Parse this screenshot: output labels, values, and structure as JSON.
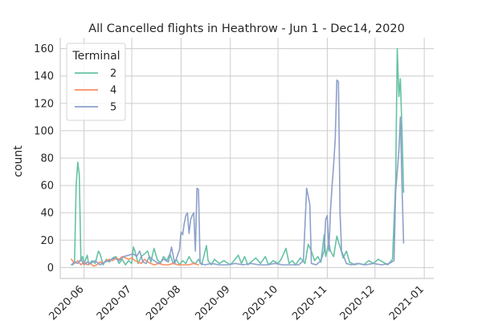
{
  "chart_data": {
    "type": "line",
    "title": "All Cancelled flights in Heathrow - Jun 1 - Dec14, 2020",
    "xlabel": "",
    "ylabel": "count",
    "xlim": [
      "2020-05-17",
      "2021-01-07"
    ],
    "ylim": [
      -8,
      168
    ],
    "x_ticks": [
      "2020-06",
      "2020-07",
      "2020-08",
      "2020-09",
      "2020-10",
      "2020-11",
      "2020-12",
      "2021-01"
    ],
    "y_ticks": [
      0,
      20,
      40,
      60,
      80,
      100,
      120,
      140,
      160
    ],
    "grid": true,
    "legend": {
      "title": "Terminal",
      "position": "top-left"
    },
    "series": [
      {
        "name": "2",
        "color": "#66c2a5",
        "points": [
          [
            "2020-05-25",
            2
          ],
          [
            "2020-05-26",
            4
          ],
          [
            "2020-05-27",
            60
          ],
          [
            "2020-05-28",
            77
          ],
          [
            "2020-05-29",
            68
          ],
          [
            "2020-05-30",
            5
          ],
          [
            "2020-05-31",
            8
          ],
          [
            "2020-06-01",
            3
          ],
          [
            "2020-06-03",
            9
          ],
          [
            "2020-06-04",
            2
          ],
          [
            "2020-06-06",
            5
          ],
          [
            "2020-06-08",
            3
          ],
          [
            "2020-06-10",
            12
          ],
          [
            "2020-06-11",
            10
          ],
          [
            "2020-06-13",
            2
          ],
          [
            "2020-06-15",
            6
          ],
          [
            "2020-06-17",
            4
          ],
          [
            "2020-06-19",
            7
          ],
          [
            "2020-06-21",
            8
          ],
          [
            "2020-06-23",
            3
          ],
          [
            "2020-06-25",
            6
          ],
          [
            "2020-06-27",
            2
          ],
          [
            "2020-06-29",
            5
          ],
          [
            "2020-07-01",
            3
          ],
          [
            "2020-07-02",
            15
          ],
          [
            "2020-07-03",
            12
          ],
          [
            "2020-07-05",
            3
          ],
          [
            "2020-07-07",
            8
          ],
          [
            "2020-07-09",
            10
          ],
          [
            "2020-07-11",
            12
          ],
          [
            "2020-07-13",
            4
          ],
          [
            "2020-07-15",
            14
          ],
          [
            "2020-07-17",
            6
          ],
          [
            "2020-07-19",
            3
          ],
          [
            "2020-07-21",
            8
          ],
          [
            "2020-07-23",
            5
          ],
          [
            "2020-07-25",
            10
          ],
          [
            "2020-07-27",
            3
          ],
          [
            "2020-07-29",
            6
          ],
          [
            "2020-07-31",
            2
          ],
          [
            "2020-08-02",
            5
          ],
          [
            "2020-08-04",
            3
          ],
          [
            "2020-08-06",
            8
          ],
          [
            "2020-08-08",
            4
          ],
          [
            "2020-08-10",
            3
          ],
          [
            "2020-08-12",
            6
          ],
          [
            "2020-08-14",
            2
          ],
          [
            "2020-08-17",
            16
          ],
          [
            "2020-08-18",
            5
          ],
          [
            "2020-08-20",
            2
          ],
          [
            "2020-08-22",
            6
          ],
          [
            "2020-08-25",
            3
          ],
          [
            "2020-08-28",
            5
          ],
          [
            "2020-09-01",
            2
          ],
          [
            "2020-09-04",
            6
          ],
          [
            "2020-09-06",
            9
          ],
          [
            "2020-09-08",
            3
          ],
          [
            "2020-09-10",
            8
          ],
          [
            "2020-09-12",
            2
          ],
          [
            "2020-09-15",
            5
          ],
          [
            "2020-09-17",
            7
          ],
          [
            "2020-09-20",
            3
          ],
          [
            "2020-09-23",
            8
          ],
          [
            "2020-09-25",
            2
          ],
          [
            "2020-09-28",
            5
          ],
          [
            "2020-10-01",
            3
          ],
          [
            "2020-10-03",
            6
          ],
          [
            "2020-10-06",
            14
          ],
          [
            "2020-10-08",
            3
          ],
          [
            "2020-10-10",
            5
          ],
          [
            "2020-10-12",
            2
          ],
          [
            "2020-10-15",
            7
          ],
          [
            "2020-10-18",
            3
          ],
          [
            "2020-10-20",
            17
          ],
          [
            "2020-10-22",
            12
          ],
          [
            "2020-10-24",
            5
          ],
          [
            "2020-10-26",
            8
          ],
          [
            "2020-10-28",
            4
          ],
          [
            "2020-10-30",
            24
          ],
          [
            "2020-10-31",
            8
          ],
          [
            "2020-11-02",
            18
          ],
          [
            "2020-11-03",
            12
          ],
          [
            "2020-11-05",
            8
          ],
          [
            "2020-11-07",
            23
          ],
          [
            "2020-11-09",
            15
          ],
          [
            "2020-11-11",
            7
          ],
          [
            "2020-11-13",
            12
          ],
          [
            "2020-11-15",
            4
          ],
          [
            "2020-11-18",
            2
          ],
          [
            "2020-11-21",
            3
          ],
          [
            "2020-11-24",
            2
          ],
          [
            "2020-11-27",
            5
          ],
          [
            "2020-11-30",
            3
          ],
          [
            "2020-12-03",
            6
          ],
          [
            "2020-12-06",
            4
          ],
          [
            "2020-12-09",
            2
          ],
          [
            "2020-12-12",
            6
          ],
          [
            "2020-12-14",
            62
          ],
          [
            "2020-12-15",
            160
          ],
          [
            "2020-12-16",
            125
          ],
          [
            "2020-12-17",
            138
          ],
          [
            "2020-12-18",
            100
          ],
          [
            "2020-12-19",
            55
          ]
        ]
      },
      {
        "name": "4",
        "color": "#fc8d62",
        "points": [
          [
            "2020-05-24",
            6
          ],
          [
            "2020-05-26",
            3
          ],
          [
            "2020-05-28",
            5
          ],
          [
            "2020-05-30",
            2
          ],
          [
            "2020-06-01",
            4
          ],
          [
            "2020-06-03",
            2
          ],
          [
            "2020-06-05",
            3
          ],
          [
            "2020-06-07",
            1
          ],
          [
            "2020-06-09",
            2
          ],
          [
            "2020-06-11",
            4
          ],
          [
            "2020-06-13",
            3
          ],
          [
            "2020-06-15",
            5
          ],
          [
            "2020-06-17",
            6
          ],
          [
            "2020-06-19",
            5
          ],
          [
            "2020-06-21",
            7
          ],
          [
            "2020-06-23",
            6
          ],
          [
            "2020-06-25",
            8
          ],
          [
            "2020-06-27",
            7
          ],
          [
            "2020-06-29",
            6
          ],
          [
            "2020-07-01",
            7
          ],
          [
            "2020-07-03",
            5
          ],
          [
            "2020-07-05",
            4
          ],
          [
            "2020-07-07",
            3
          ],
          [
            "2020-07-09",
            6
          ],
          [
            "2020-07-11",
            4
          ],
          [
            "2020-07-13",
            3
          ],
          [
            "2020-07-15",
            2
          ],
          [
            "2020-07-18",
            3
          ],
          [
            "2020-07-21",
            2
          ],
          [
            "2020-07-24",
            2
          ],
          [
            "2020-07-27",
            3
          ],
          [
            "2020-07-30",
            2
          ],
          [
            "2020-08-03",
            2
          ],
          [
            "2020-08-06",
            2
          ],
          [
            "2020-08-09",
            3
          ],
          [
            "2020-08-12",
            2
          ]
        ]
      },
      {
        "name": "5",
        "color": "#8da0cb",
        "points": [
          [
            "2020-05-24",
            2
          ],
          [
            "2020-05-26",
            4
          ],
          [
            "2020-05-28",
            3
          ],
          [
            "2020-05-30",
            6
          ],
          [
            "2020-06-01",
            2
          ],
          [
            "2020-06-03",
            4
          ],
          [
            "2020-06-05",
            3
          ],
          [
            "2020-06-08",
            5
          ],
          [
            "2020-06-11",
            2
          ],
          [
            "2020-06-14",
            4
          ],
          [
            "2020-06-17",
            5
          ],
          [
            "2020-06-20",
            7
          ],
          [
            "2020-06-23",
            5
          ],
          [
            "2020-06-26",
            8
          ],
          [
            "2020-06-29",
            9
          ],
          [
            "2020-07-02",
            10
          ],
          [
            "2020-07-04",
            8
          ],
          [
            "2020-07-06",
            12
          ],
          [
            "2020-07-08",
            4
          ],
          [
            "2020-07-10",
            3
          ],
          [
            "2020-07-12",
            8
          ],
          [
            "2020-07-15",
            5
          ],
          [
            "2020-07-18",
            3
          ],
          [
            "2020-07-21",
            6
          ],
          [
            "2020-07-24",
            4
          ],
          [
            "2020-07-26",
            15
          ],
          [
            "2020-07-28",
            3
          ],
          [
            "2020-07-31",
            13
          ],
          [
            "2020-08-01",
            26
          ],
          [
            "2020-08-02",
            24
          ],
          [
            "2020-08-03",
            32
          ],
          [
            "2020-08-04",
            38
          ],
          [
            "2020-08-05",
            40
          ],
          [
            "2020-08-06",
            25
          ],
          [
            "2020-08-07",
            35
          ],
          [
            "2020-08-08",
            38
          ],
          [
            "2020-08-09",
            40
          ],
          [
            "2020-08-10",
            12
          ],
          [
            "2020-08-11",
            58
          ],
          [
            "2020-08-12",
            57
          ],
          [
            "2020-08-13",
            3
          ],
          [
            "2020-08-16",
            2
          ],
          [
            "2020-08-20",
            3
          ],
          [
            "2020-08-25",
            2
          ],
          [
            "2020-08-30",
            2
          ],
          [
            "2020-09-04",
            3
          ],
          [
            "2020-09-09",
            2
          ],
          [
            "2020-09-14",
            3
          ],
          [
            "2020-09-19",
            2
          ],
          [
            "2020-09-24",
            2
          ],
          [
            "2020-09-29",
            3
          ],
          [
            "2020-10-04",
            2
          ],
          [
            "2020-10-09",
            2
          ],
          [
            "2020-10-14",
            2
          ],
          [
            "2020-10-17",
            5
          ],
          [
            "2020-10-19",
            58
          ],
          [
            "2020-10-20",
            52
          ],
          [
            "2020-10-21",
            46
          ],
          [
            "2020-10-22",
            3
          ],
          [
            "2020-10-25",
            2
          ],
          [
            "2020-10-28",
            5
          ],
          [
            "2020-10-30",
            12
          ],
          [
            "2020-10-31",
            35
          ],
          [
            "2020-11-01",
            38
          ],
          [
            "2020-11-02",
            12
          ],
          [
            "2020-11-03",
            42
          ],
          [
            "2020-11-04",
            60
          ],
          [
            "2020-11-05",
            75
          ],
          [
            "2020-11-06",
            94
          ],
          [
            "2020-11-07",
            137
          ],
          [
            "2020-11-08",
            136
          ],
          [
            "2020-11-09",
            40
          ],
          [
            "2020-11-10",
            12
          ],
          [
            "2020-11-13",
            3
          ],
          [
            "2020-11-16",
            2
          ],
          [
            "2020-11-20",
            3
          ],
          [
            "2020-11-25",
            2
          ],
          [
            "2020-11-30",
            3
          ],
          [
            "2020-12-05",
            2
          ],
          [
            "2020-12-10",
            3
          ],
          [
            "2020-12-13",
            5
          ],
          [
            "2020-12-14",
            55
          ],
          [
            "2020-12-15",
            70
          ],
          [
            "2020-12-16",
            85
          ],
          [
            "2020-12-17",
            110
          ],
          [
            "2020-12-18",
            60
          ],
          [
            "2020-12-19",
            18
          ]
        ]
      }
    ]
  }
}
